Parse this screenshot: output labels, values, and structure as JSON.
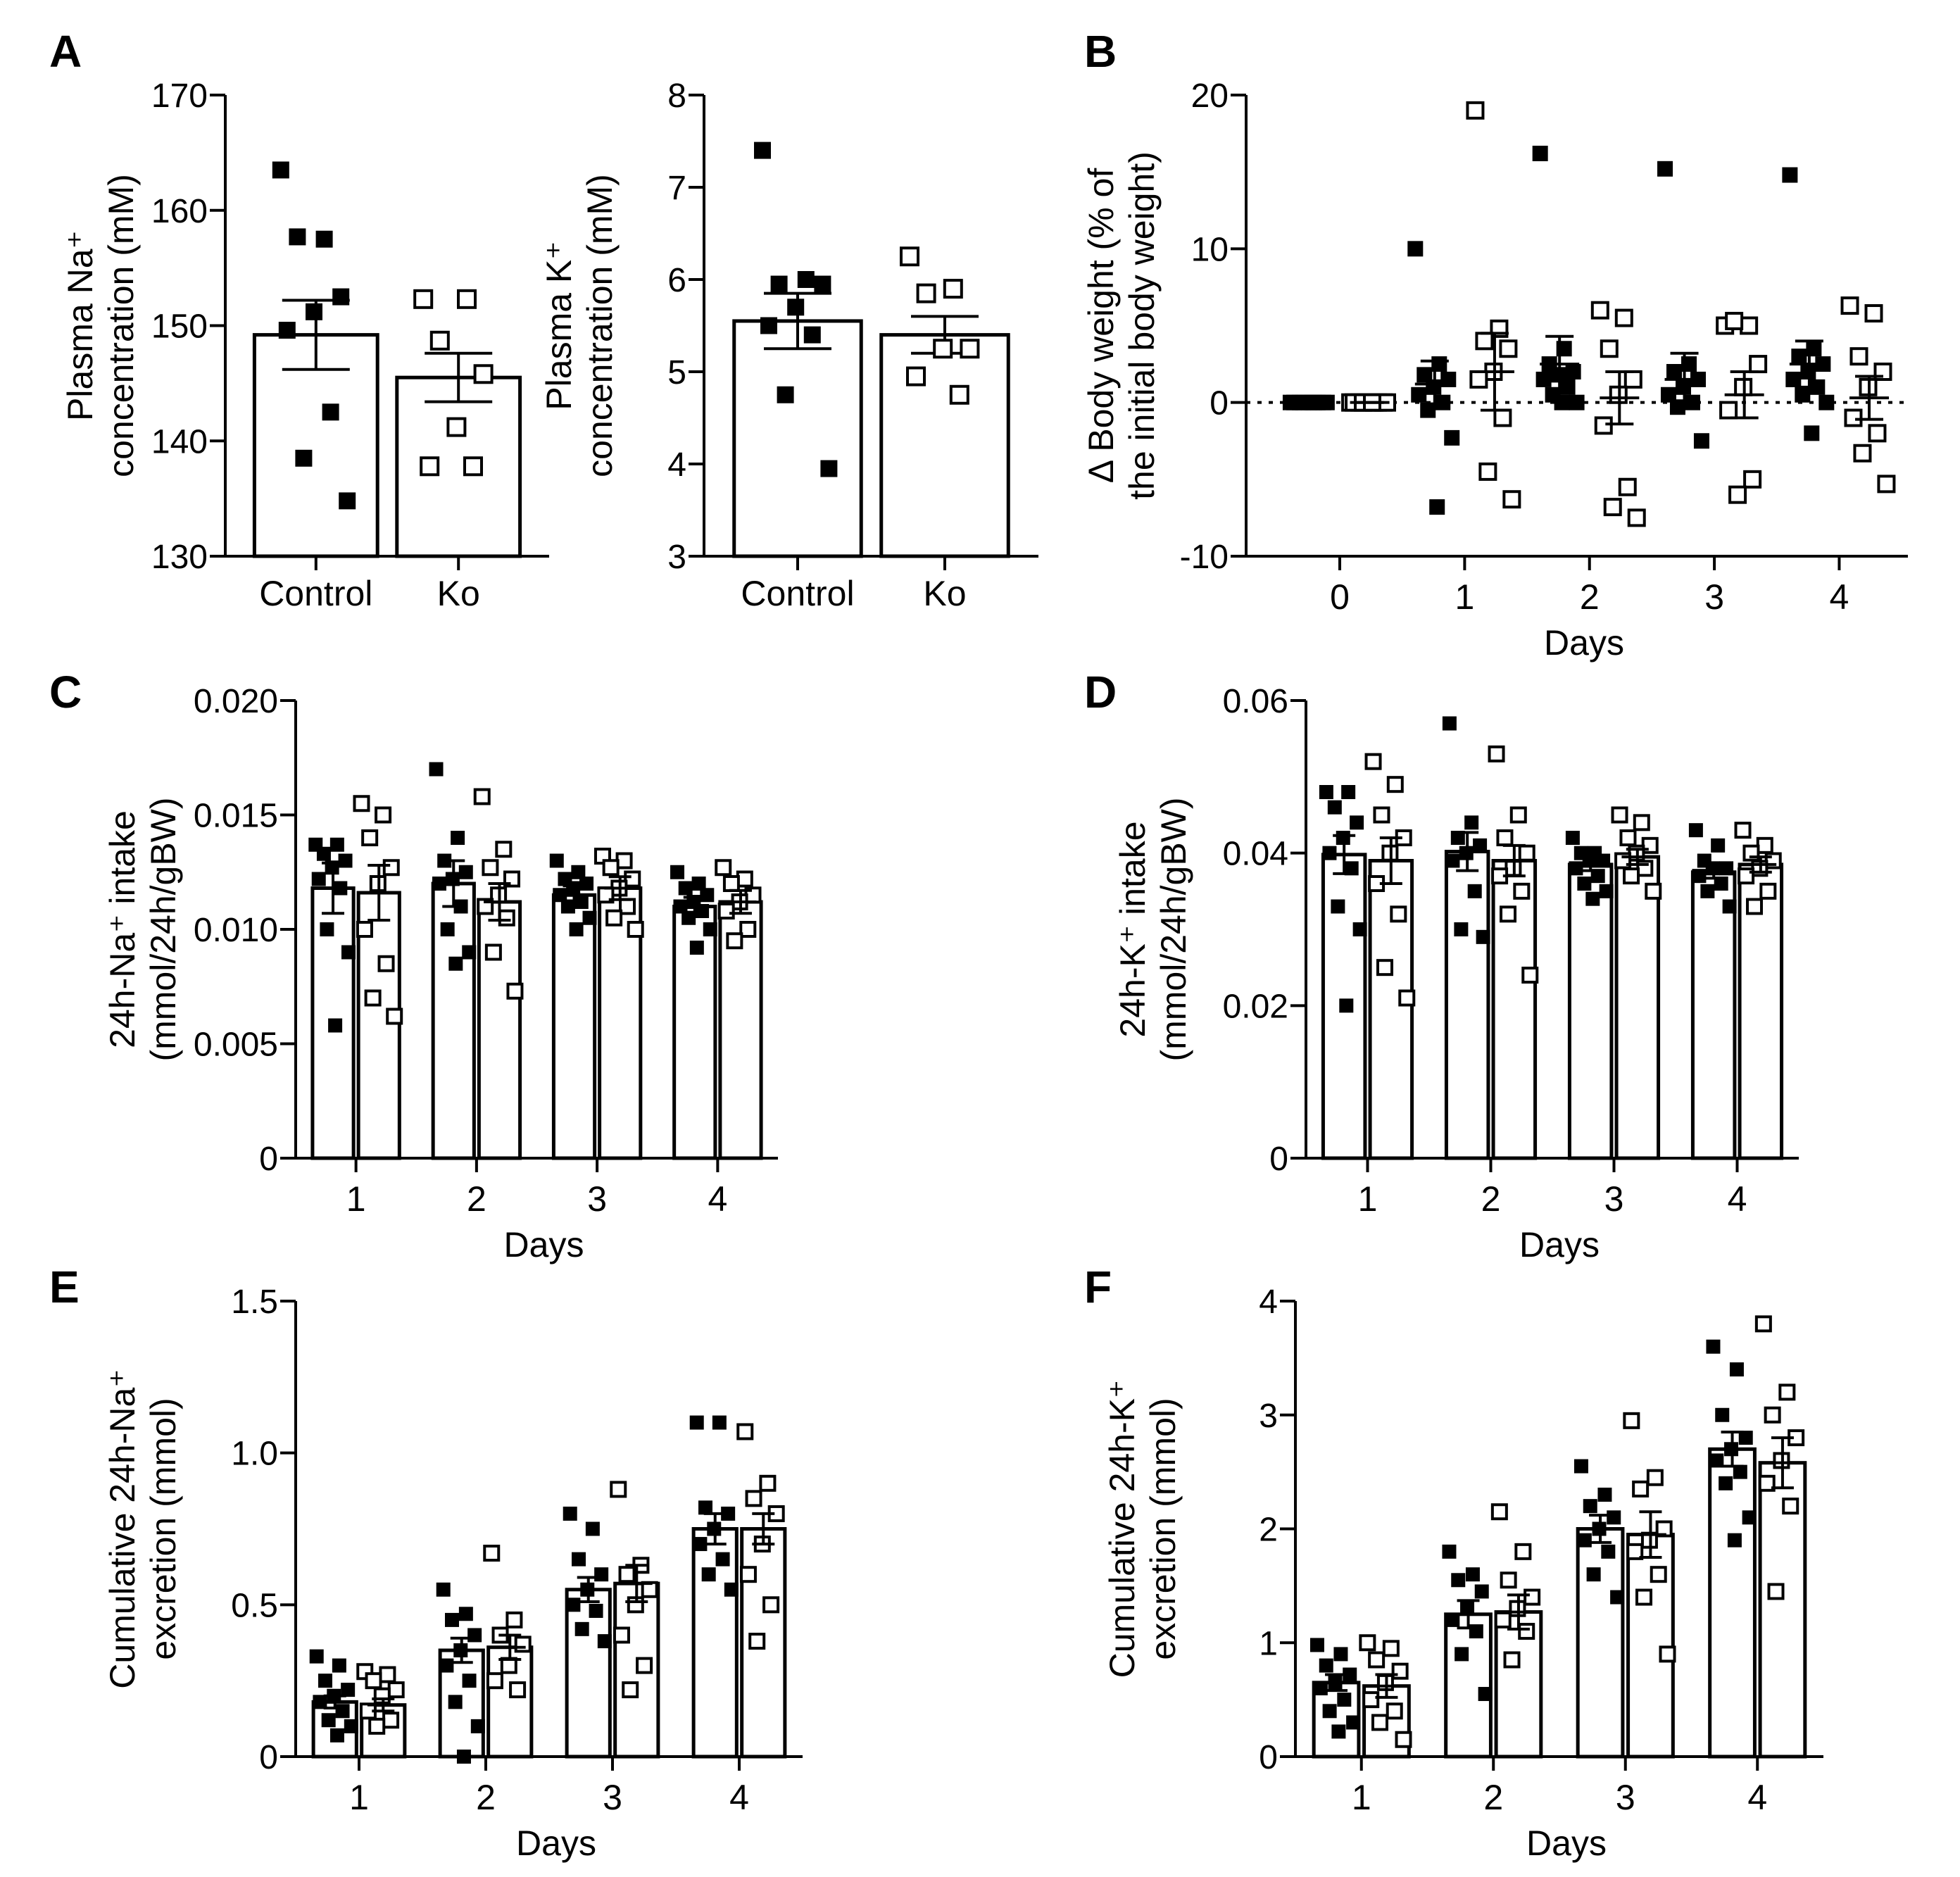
{
  "figure": {
    "panel_letters": [
      "A",
      "B",
      "C",
      "D",
      "E",
      "F"
    ]
  },
  "colors": {
    "control_marker": "#000000",
    "ko_marker_fill": "#ffffff",
    "bar_fill": "#ffffff",
    "axis": "#000000"
  },
  "chart_data": [
    {
      "id": "A1",
      "type": "bar",
      "panel": "A",
      "ylabel": "Plasma Na⁺\nconcentration (mM)",
      "ylim": [
        130,
        170
      ],
      "yticks": [
        130,
        140,
        150,
        160,
        170
      ],
      "categories": [
        "Control",
        "Ko"
      ],
      "series": [
        {
          "name": "Control",
          "marker": "filled-square",
          "mean": 149.2,
          "sem": 3.0,
          "points": [
            163.5,
            157.5,
            157.7,
            152.5,
            151.2,
            149.6,
            142.5,
            138.5,
            134.8
          ]
        },
        {
          "name": "Ko",
          "marker": "open-square",
          "mean": 145.5,
          "sem": 2.1,
          "points": [
            152.3,
            152.3,
            148.7,
            145.8,
            141.2,
            137.8,
            137.8
          ]
        }
      ]
    },
    {
      "id": "A2",
      "type": "bar",
      "panel": "A",
      "ylabel": "Plasma K⁺\nconcentration (mM)",
      "ylim": [
        3,
        8
      ],
      "yticks": [
        3,
        4,
        5,
        6,
        7,
        8
      ],
      "categories": [
        "Control",
        "Ko"
      ],
      "series": [
        {
          "name": "Control",
          "marker": "filled-square",
          "mean": 5.55,
          "sem": 0.3,
          "points": [
            7.4,
            6.0,
            5.95,
            5.95,
            5.7,
            5.5,
            5.4,
            4.75,
            3.95
          ]
        },
        {
          "name": "Ko",
          "marker": "open-square",
          "mean": 5.4,
          "sem": 0.2,
          "points": [
            6.25,
            5.9,
            5.85,
            5.25,
            5.25,
            4.95,
            4.75
          ]
        }
      ]
    },
    {
      "id": "B",
      "type": "scatter",
      "panel": "B",
      "ylabel": "Δ Body weight (% of\nthe initial body weight)",
      "xlabel": "Days",
      "ylim": [
        -10,
        20
      ],
      "yticks": [
        -10,
        0,
        10,
        20
      ],
      "categories": [
        "0",
        "1",
        "2",
        "3",
        "4"
      ],
      "reference_line": 0,
      "series": [
        {
          "name": "Control",
          "marker": "filled-square",
          "days": [
            {
              "mean": 0.0,
              "sem": 0.0,
              "points": [
                0,
                0,
                0,
                0,
                0,
                0,
                0,
                0,
                0,
                0
              ]
            },
            {
              "mean": 1.2,
              "sem": 1.5,
              "points": [
                10.0,
                2.5,
                1.8,
                1.5,
                1.0,
                0.5,
                0.0,
                -0.5,
                -2.3,
                -6.8
              ]
            },
            {
              "mean": 2.5,
              "sem": 1.8,
              "points": [
                16.2,
                3.5,
                2.5,
                2.0,
                1.8,
                1.5,
                1.0,
                0.5,
                0.0,
                0.0
              ]
            },
            {
              "mean": 1.5,
              "sem": 1.7,
              "points": [
                15.2,
                2.5,
                2.0,
                1.5,
                1.0,
                0.5,
                0.0,
                -0.3,
                -2.5
              ]
            },
            {
              "mean": 2.5,
              "sem": 1.5,
              "points": [
                14.8,
                3.5,
                3.0,
                2.5,
                2.0,
                1.5,
                1.0,
                0.5,
                0.0,
                -2.0
              ]
            }
          ]
        },
        {
          "name": "Ko",
          "marker": "open-square",
          "days": [
            {
              "mean": 0.0,
              "sem": 0.0,
              "points": [
                0,
                0,
                0,
                0,
                0,
                0,
                0,
                0,
                0,
                0
              ]
            },
            {
              "mean": 2.0,
              "sem": 2.5,
              "points": [
                19.0,
                4.8,
                4.0,
                3.5,
                2.0,
                1.5,
                -1.0,
                -4.5,
                -6.3
              ]
            },
            {
              "mean": 0.3,
              "sem": 1.7,
              "points": [
                6.0,
                5.5,
                3.5,
                1.5,
                0.5,
                -1.5,
                -5.5,
                -6.8,
                -7.5
              ]
            },
            {
              "mean": 0.5,
              "sem": 1.5,
              "points": [
                5.0,
                5.0,
                5.3,
                2.5,
                1.0,
                -0.5,
                -5.0,
                -6.0
              ]
            },
            {
              "mean": 0.3,
              "sem": 1.4,
              "points": [
                6.3,
                5.8,
                3.0,
                2.0,
                1.0,
                -1.0,
                -2.0,
                -3.3,
                -5.3
              ]
            }
          ]
        }
      ]
    },
    {
      "id": "C",
      "type": "bar",
      "panel": "C",
      "ylabel": "24h-Na⁺ intake\n(mmol/24h/gBW)",
      "xlabel": "Days",
      "ylim": [
        0,
        0.02
      ],
      "yticks": [
        0,
        0.005,
        0.01,
        0.015,
        0.02
      ],
      "ytick_labels": [
        "0",
        "0.005",
        "0.010",
        "0.015",
        "0.020"
      ],
      "categories": [
        "1",
        "2",
        "3",
        "4"
      ],
      "series": [
        {
          "name": "Control",
          "marker": "filled-square",
          "means": [
            0.0118,
            0.012,
            0.0115,
            0.011
          ],
          "sems": [
            0.0011,
            0.001,
            0.0004,
            0.0004
          ],
          "points": [
            [
              0.0137,
              0.0137,
              0.0133,
              0.013,
              0.0127,
              0.0122,
              0.0118,
              0.01,
              0.009,
              0.0058
            ],
            [
              0.017,
              0.014,
              0.013,
              0.0125,
              0.0122,
              0.012,
              0.011,
              0.01,
              0.009,
              0.0085
            ],
            [
              0.013,
              0.0125,
              0.0122,
              0.012,
              0.0118,
              0.0115,
              0.0112,
              0.011,
              0.0105,
              0.01
            ],
            [
              0.0125,
              0.012,
              0.0118,
              0.0115,
              0.0112,
              0.011,
              0.0108,
              0.0105,
              0.01,
              0.0092
            ]
          ]
        },
        {
          "name": "Ko",
          "marker": "open-square",
          "means": [
            0.0116,
            0.0112,
            0.0118,
            0.0112
          ],
          "sems": [
            0.0012,
            0.0008,
            0.0005,
            0.0005
          ],
          "points": [
            [
              0.0155,
              0.015,
              0.014,
              0.0127,
              0.012,
              0.01,
              0.0085,
              0.007,
              0.0062
            ],
            [
              0.0158,
              0.0135,
              0.0127,
              0.0122,
              0.0115,
              0.011,
              0.0105,
              0.009,
              0.0073
            ],
            [
              0.0132,
              0.013,
              0.0127,
              0.0122,
              0.0118,
              0.0115,
              0.011,
              0.0105,
              0.01
            ],
            [
              0.0127,
              0.0122,
              0.012,
              0.0115,
              0.0112,
              0.0108,
              0.01,
              0.0095
            ]
          ]
        }
      ]
    },
    {
      "id": "D",
      "type": "bar",
      "panel": "D",
      "ylabel": "24h-K⁺ intake\n(mmol/24h/gBW)",
      "xlabel": "Days",
      "ylim": [
        0,
        0.06
      ],
      "yticks": [
        0,
        0.02,
        0.04,
        0.06
      ],
      "ytick_labels": [
        "0",
        "0.02",
        "0.04",
        "0.06"
      ],
      "categories": [
        "1",
        "2",
        "3",
        "4"
      ],
      "series": [
        {
          "name": "Control",
          "marker": "filled-square",
          "means": [
            0.0398,
            0.0402,
            0.0385,
            0.0375
          ],
          "sems": [
            0.0025,
            0.0025,
            0.0008,
            0.0008
          ],
          "points": [
            [
              0.048,
              0.048,
              0.046,
              0.044,
              0.042,
              0.04,
              0.038,
              0.033,
              0.03,
              0.02
            ],
            [
              0.057,
              0.044,
              0.042,
              0.041,
              0.04,
              0.039,
              0.035,
              0.03,
              0.029
            ],
            [
              0.042,
              0.04,
              0.04,
              0.039,
              0.039,
              0.038,
              0.037,
              0.036,
              0.035,
              0.034
            ],
            [
              0.043,
              0.041,
              0.039,
              0.038,
              0.038,
              0.037,
              0.036,
              0.035,
              0.033
            ]
          ]
        },
        {
          "name": "Ko",
          "marker": "open-square",
          "means": [
            0.039,
            0.039,
            0.0395,
            0.0385
          ],
          "sems": [
            0.003,
            0.002,
            0.001,
            0.001
          ],
          "points": [
            [
              0.052,
              0.049,
              0.045,
              0.042,
              0.04,
              0.036,
              0.032,
              0.025,
              0.021
            ],
            [
              0.053,
              0.045,
              0.042,
              0.04,
              0.038,
              0.037,
              0.035,
              0.032,
              0.024
            ],
            [
              0.045,
              0.044,
              0.042,
              0.041,
              0.04,
              0.039,
              0.038,
              0.037,
              0.035
            ],
            [
              0.043,
              0.041,
              0.04,
              0.039,
              0.038,
              0.037,
              0.035,
              0.033
            ]
          ]
        }
      ]
    },
    {
      "id": "E",
      "type": "bar",
      "panel": "E",
      "ylabel": "Cumulative 24h-Na⁺\nexcretion (mmol)",
      "xlabel": "Days",
      "ylim": [
        0,
        1.5
      ],
      "yticks": [
        0,
        0.5,
        1.0,
        1.5
      ],
      "ytick_labels": [
        "0",
        "0.5",
        "1.0",
        "1.5"
      ],
      "categories": [
        "1",
        "2",
        "3",
        "4"
      ],
      "series": [
        {
          "name": "Control",
          "marker": "filled-square",
          "means": [
            0.18,
            0.35,
            0.55,
            0.75
          ],
          "sems": [
            0.02,
            0.04,
            0.04,
            0.05
          ],
          "points": [
            [
              0.33,
              0.3,
              0.25,
              0.22,
              0.2,
              0.18,
              0.15,
              0.12,
              0.1,
              0.07
            ],
            [
              0.55,
              0.47,
              0.45,
              0.4,
              0.35,
              0.3,
              0.25,
              0.18,
              0.1,
              0.0
            ],
            [
              0.8,
              0.75,
              0.65,
              0.6,
              0.55,
              0.5,
              0.48,
              0.42,
              0.38
            ],
            [
              1.1,
              1.1,
              0.82,
              0.8,
              0.75,
              0.7,
              0.65,
              0.6,
              0.55
            ]
          ]
        },
        {
          "name": "Ko",
          "marker": "open-square",
          "means": [
            0.17,
            0.36,
            0.57,
            0.75
          ],
          "sems": [
            0.02,
            0.04,
            0.06,
            0.05
          ],
          "points": [
            [
              0.28,
              0.27,
              0.25,
              0.22,
              0.2,
              0.15,
              0.12,
              0.1
            ],
            [
              0.67,
              0.45,
              0.4,
              0.37,
              0.3,
              0.25,
              0.22
            ],
            [
              0.88,
              0.63,
              0.6,
              0.55,
              0.5,
              0.4,
              0.3,
              0.22
            ],
            [
              1.07,
              0.9,
              0.85,
              0.8,
              0.7,
              0.6,
              0.5,
              0.38
            ]
          ]
        }
      ]
    },
    {
      "id": "F",
      "type": "bar",
      "panel": "F",
      "ylabel": "Cumulative 24h-K⁺\nexcretion (mmol)",
      "xlabel": "Days",
      "ylim": [
        0,
        4
      ],
      "yticks": [
        0,
        1,
        2,
        3,
        4
      ],
      "ytick_labels": [
        "0",
        "1",
        "2",
        "3",
        "4"
      ],
      "categories": [
        "1",
        "2",
        "3",
        "4"
      ],
      "series": [
        {
          "name": "Control",
          "marker": "filled-square",
          "means": [
            0.65,
            1.25,
            2.0,
            2.7
          ],
          "sems": [
            0.07,
            0.12,
            0.12,
            0.15
          ],
          "points": [
            [
              0.98,
              0.9,
              0.8,
              0.72,
              0.65,
              0.6,
              0.5,
              0.4,
              0.3,
              0.22
            ],
            [
              1.8,
              1.6,
              1.55,
              1.45,
              1.3,
              1.2,
              1.1,
              0.9,
              0.55
            ],
            [
              2.55,
              2.3,
              2.2,
              2.1,
              2.0,
              1.9,
              1.8,
              1.6,
              1.4
            ],
            [
              3.6,
              3.4,
              3.0,
              2.8,
              2.7,
              2.6,
              2.5,
              2.4,
              2.1,
              1.9
            ]
          ]
        },
        {
          "name": "Ko",
          "marker": "open-square",
          "means": [
            0.62,
            1.27,
            1.95,
            2.58
          ],
          "sems": [
            0.1,
            0.15,
            0.2,
            0.22
          ],
          "points": [
            [
              1.0,
              0.95,
              0.85,
              0.75,
              0.65,
              0.5,
              0.4,
              0.3,
              0.15
            ],
            [
              2.15,
              1.8,
              1.55,
              1.4,
              1.3,
              1.2,
              1.1,
              0.85
            ],
            [
              2.95,
              2.45,
              2.35,
              2.0,
              1.9,
              1.8,
              1.6,
              1.4,
              0.9
            ],
            [
              3.8,
              3.2,
              3.0,
              2.8,
              2.6,
              2.4,
              2.2,
              1.45
            ]
          ]
        }
      ]
    }
  ]
}
